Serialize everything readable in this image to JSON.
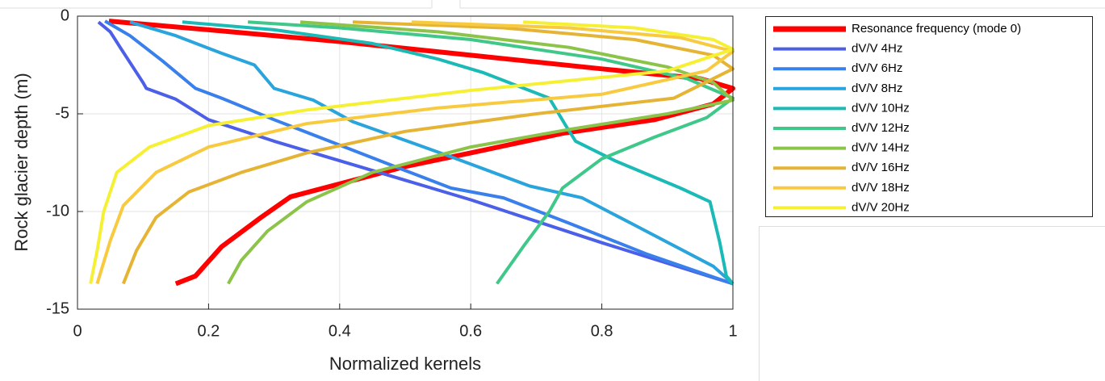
{
  "chart_data": {
    "type": "line",
    "xlabel": "Normalized kernels",
    "ylabel": "Rock glacier depth (m)",
    "xlim": [
      0,
      1
    ],
    "ylim": [
      -15,
      0
    ],
    "xticks": [
      0,
      0.2,
      0.4,
      0.6,
      0.8,
      1
    ],
    "yticks": [
      0,
      -5,
      -10,
      -15
    ],
    "grid": true,
    "legend": "right",
    "series": [
      {
        "name": "Resonance frequency (mode 0)",
        "color": "#ff0000",
        "x": [
          0.048,
          0.2,
          0.4,
          0.6,
          0.8,
          0.95,
          1,
          0.97,
          0.88,
          0.74,
          0.6,
          0.5,
          0.41,
          0.325,
          0.28,
          0.22,
          0.18,
          0.15
        ],
        "y": [
          -0.25,
          -0.7,
          -1.3,
          -2.0,
          -2.7,
          -3.2,
          -3.7,
          -4.5,
          -5.3,
          -6.0,
          -7.0,
          -7.7,
          -8.5,
          -9.25,
          -10.3,
          -11.8,
          -13.3,
          -13.7
        ]
      },
      {
        "name": "dV/V 4Hz",
        "color": "#4c5fe8",
        "x": [
          0.032,
          0.05,
          0.067,
          0.1,
          0.105,
          0.15,
          0.2,
          0.3,
          0.45,
          0.6,
          0.8,
          1
        ],
        "y": [
          -0.3,
          -0.8,
          -1.7,
          -3.4,
          -3.7,
          -4.25,
          -5.3,
          -6.4,
          -7.9,
          -9.4,
          -11.6,
          -13.7
        ]
      },
      {
        "name": "dV/V 6Hz",
        "color": "#3a80ec",
        "x": [
          0.042,
          0.08,
          0.13,
          0.18,
          0.22,
          0.3,
          0.4,
          0.5,
          0.57,
          0.65,
          0.75,
          0.87,
          1
        ],
        "y": [
          -0.25,
          -1,
          -2.3,
          -3.7,
          -4.2,
          -5.3,
          -6.6,
          -7.9,
          -8.8,
          -9.3,
          -10.6,
          -12.2,
          -13.7
        ]
      },
      {
        "name": "dV/V 8Hz",
        "color": "#2aa4dc",
        "x": [
          0.08,
          0.15,
          0.22,
          0.27,
          0.3,
          0.36,
          0.42,
          0.57,
          0.69,
          0.77,
          0.85,
          0.97,
          1
        ],
        "y": [
          -0.3,
          -1.0,
          -1.9,
          -2.5,
          -3.7,
          -4.3,
          -5.4,
          -7.2,
          -8.7,
          -9.3,
          -10.7,
          -12.8,
          -13.7
        ]
      },
      {
        "name": "dV/V 10Hz",
        "color": "#1bbab6",
        "x": [
          0.16,
          0.3,
          0.45,
          0.55,
          0.62,
          0.72,
          0.745,
          0.76,
          0.82,
          0.92,
          0.965,
          0.98,
          0.99,
          1
        ],
        "y": [
          -0.3,
          -0.7,
          -1.4,
          -2.2,
          -2.9,
          -4.2,
          -5.6,
          -6.4,
          -7.4,
          -8.8,
          -9.5,
          -11.6,
          -13.3,
          -13.7
        ]
      },
      {
        "name": "dV/V 12Hz",
        "color": "#40c78a",
        "x": [
          0.26,
          0.4,
          0.6,
          0.8,
          0.93,
          1,
          0.96,
          0.88,
          0.8,
          0.74,
          0.72,
          0.68,
          0.64
        ],
        "y": [
          -0.3,
          -0.6,
          -1.2,
          -2.2,
          -3.2,
          -4.2,
          -5.2,
          -6.2,
          -7.3,
          -8.8,
          -10,
          -11.8,
          -13.7
        ]
      },
      {
        "name": "dV/V 14Hz",
        "color": "#8cc44a",
        "x": [
          0.34,
          0.55,
          0.75,
          0.9,
          0.97,
          1,
          0.9,
          0.75,
          0.6,
          0.45,
          0.35,
          0.29,
          0.25,
          0.23
        ],
        "y": [
          -0.3,
          -0.8,
          -1.6,
          -2.6,
          -3.4,
          -4.3,
          -5.0,
          -5.8,
          -6.7,
          -8.0,
          -9.5,
          -11,
          -12.5,
          -13.7
        ]
      },
      {
        "name": "dV/V 16Hz",
        "color": "#e6b434",
        "x": [
          0.42,
          0.65,
          0.85,
          0.97,
          1,
          0.91,
          0.7,
          0.5,
          0.35,
          0.25,
          0.17,
          0.12,
          0.09,
          0.07
        ],
        "y": [
          -0.3,
          -0.6,
          -1.2,
          -2.0,
          -2.7,
          -4.2,
          -5.0,
          -5.9,
          -7,
          -8,
          -9,
          -10.3,
          -12,
          -13.7
        ]
      },
      {
        "name": "dV/V 18Hz",
        "color": "#f8ca40",
        "x": [
          0.51,
          0.75,
          0.92,
          1,
          0.96,
          0.8,
          0.55,
          0.35,
          0.2,
          0.12,
          0.07,
          0.05,
          0.03
        ],
        "y": [
          -0.3,
          -0.6,
          -1.1,
          -1.8,
          -2.8,
          -4.0,
          -4.7,
          -5.5,
          -6.7,
          -8,
          -9.7,
          -11.5,
          -13.7
        ]
      },
      {
        "name": "dV/V 20Hz",
        "color": "#f6f034",
        "x": [
          0.68,
          0.85,
          0.97,
          1,
          0.9,
          0.6,
          0.35,
          0.2,
          0.11,
          0.06,
          0.04,
          0.03,
          0.02
        ],
        "y": [
          -0.3,
          -0.6,
          -1.2,
          -1.7,
          -2.8,
          -3.8,
          -4.8,
          -5.6,
          -6.7,
          -8,
          -10,
          -12,
          -13.7
        ]
      }
    ]
  }
}
